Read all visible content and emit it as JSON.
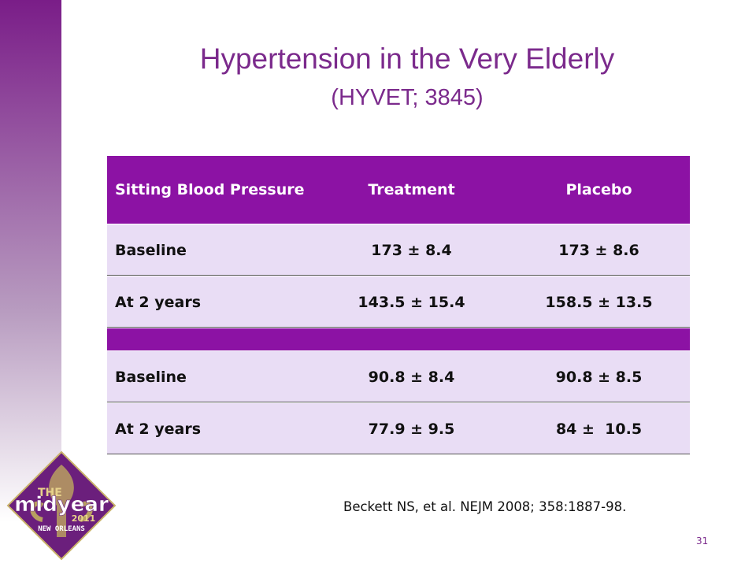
{
  "header": {
    "title": "Hypertension in the Very Elderly",
    "subtitle": "(HYVET; 3845)"
  },
  "table": {
    "columns": [
      "Sitting Blood Pressure",
      "Treatment",
      "Placebo"
    ],
    "rows": [
      [
        "Baseline",
        "173 ± 8.4",
        "173 ± 8.6"
      ],
      [
        "At 2 years",
        "143.5 ± 15.4",
        "158.5 ± 13.5"
      ],
      [
        "Baseline",
        "90.8 ± 8.4",
        "90.8 ± 8.5"
      ],
      [
        "At 2 years",
        "77.9 ± 9.5",
        "84 ±  10.5"
      ]
    ]
  },
  "citation": "Beckett NS, et al. NEJM 2008; 358:1887-98.",
  "logo": {
    "top": "THE",
    "main": "midyear",
    "year": "2011",
    "place": "NEW ORLEANS"
  },
  "page_number": "31"
}
